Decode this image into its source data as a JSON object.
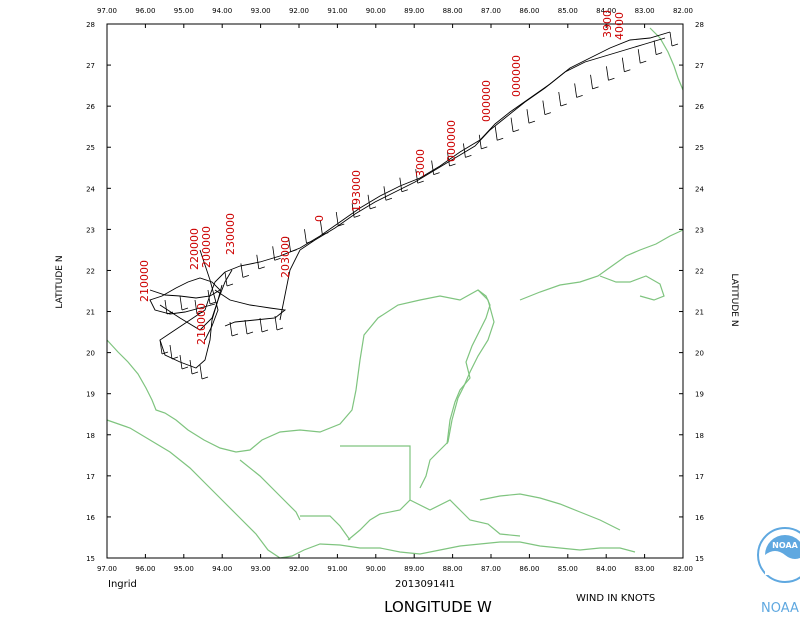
{
  "map": {
    "storm_name": "Ingrid",
    "flight_id": "20130914I1",
    "x_axis_title": "LONGITUDE   W",
    "y_axis_title_left": "LATITUDE   N",
    "y_axis_title_right": "LATITUDE   N",
    "wind_units_note": "WIND IN KNOTS",
    "logo_text": "NOAA",
    "logo_inner_text": "NOAA",
    "lon_ticks": [
      "97.00",
      "96.00",
      "95.00",
      "94.00",
      "93.00",
      "92.00",
      "91.00",
      "90.00",
      "89.00",
      "88.00",
      "87.00",
      "86.00",
      "85.00",
      "84.00",
      "83.00",
      "82.00"
    ],
    "lat_ticks": [
      "28",
      "27",
      "26",
      "25",
      "24",
      "23",
      "22",
      "21",
      "20",
      "19",
      "18",
      "17",
      "16",
      "15"
    ],
    "time_labels": [
      "210000",
      "220000",
      "200000",
      "230000",
      "203000",
      "210000",
      "193000",
      "3000",
      "000000",
      "000000",
      "000000",
      "3900",
      "4000",
      "0"
    ],
    "colors": {
      "coastline": "#7fc47f",
      "track": "#000000",
      "time_label": "#cc0000",
      "logo": "#5fa8e0"
    }
  }
}
